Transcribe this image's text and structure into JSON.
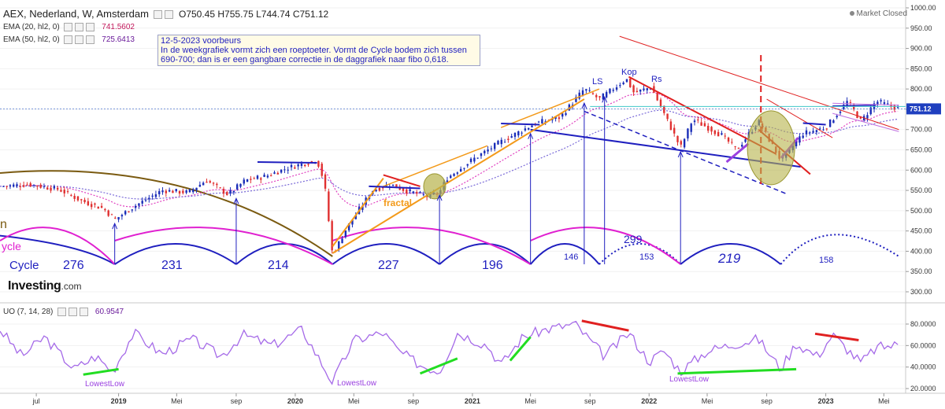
{
  "header": {
    "symbol": "AEX, Nederland, W, Amsterdam",
    "open": "O750.45",
    "high": "H755.75",
    "low": "L744.74",
    "close": "C751.12"
  },
  "indicators": {
    "ema20": {
      "label": "EMA (20, hl2, 0)",
      "value": "741.5602"
    },
    "ema50": {
      "label": "EMA (50, hl2, 0)",
      "value": "725.6413"
    }
  },
  "annotation": {
    "line1": "12-5-2023 voorbeurs",
    "line2": "In de weekgrafiek vormt zich een roeptoeter. Vormt de Cycle bodem zich tussen",
    "line3": "690-700; dan is er een gangbare correctie in de daggrafiek naar fibo 0,618."
  },
  "market_status": "Market Closed",
  "logo": {
    "name": "Investing",
    "domain": ".com"
  },
  "uo": {
    "label": "UO (7, 14, 28)",
    "value": "60.9547"
  },
  "colors": {
    "up": "#1a2db8",
    "down": "#e03030",
    "ema20": "#e040c0",
    "ema50": "#7a6ad8",
    "cycle_blue": "#1f1fbf",
    "cycle_magenta": "#e020d0",
    "brown": "#7a5a10",
    "orange": "#f39a1a",
    "red": "#e02020",
    "purple": "#9a40e0",
    "uo_line": "#a56ae8",
    "green": "#22dd22",
    "teal": "#40c8c8",
    "olive": "#b6b24a"
  },
  "chart_data": {
    "type": "candlestick",
    "title": "AEX, Nederland, W, Amsterdam",
    "price_axis": {
      "ticks": [
        "1000.00",
        "950.00",
        "900.00",
        "850.00",
        "800.00",
        "750.00",
        "700.00",
        "650.00",
        "600.00",
        "550.00",
        "500.00",
        "450.00",
        "400.00",
        "350.00",
        "300.00"
      ],
      "range": [
        280,
        1005
      ],
      "last_price_label": "751.12"
    },
    "uo_axis": {
      "ticks": [
        "80.0000",
        "60.0000",
        "40.0000",
        "20.0000"
      ],
      "range": [
        18,
        88
      ]
    },
    "time_axis": [
      "jul",
      "2019",
      "Mei",
      "sep",
      "2020",
      "Mei",
      "sep",
      "2021",
      "Mei",
      "sep",
      "2022",
      "Mei",
      "sep",
      "2023",
      "Mei"
    ],
    "time_range": [
      "2018-05",
      "2023-06"
    ],
    "price_path": [
      [
        "2018-05-01",
        560
      ],
      [
        "2018-07-01",
        565
      ],
      [
        "2018-09-01",
        552
      ],
      [
        "2018-10-15",
        525
      ],
      [
        "2018-12-01",
        505
      ],
      [
        "2018-12-24",
        478
      ],
      [
        "2019-02-01",
        510
      ],
      [
        "2019-04-01",
        550
      ],
      [
        "2019-05-25",
        545
      ],
      [
        "2019-07-01",
        575
      ],
      [
        "2019-08-15",
        540
      ],
      [
        "2019-09-20",
        575
      ],
      [
        "2019-11-01",
        585
      ],
      [
        "2019-12-15",
        605
      ],
      [
        "2020-02-15",
        625
      ],
      [
        "2020-03-01",
        570
      ],
      [
        "2020-03-18",
        390
      ],
      [
        "2020-04-15",
        455
      ],
      [
        "2020-06-08",
        550
      ],
      [
        "2020-07-15",
        565
      ],
      [
        "2020-08-15",
        550
      ],
      [
        "2020-09-30",
        535
      ],
      [
        "2020-10-25",
        545
      ],
      [
        "2020-11-09",
        580
      ],
      [
        "2020-12-31",
        625
      ],
      [
        "2021-03-01",
        670
      ],
      [
        "2021-05-10",
        715
      ],
      [
        "2021-07-01",
        730
      ],
      [
        "2021-08-20",
        800
      ],
      [
        "2021-09-20",
        775
      ],
      [
        "2021-11-15",
        825
      ],
      [
        "2021-12-01",
        790
      ],
      [
        "2022-01-05",
        805
      ],
      [
        "2022-03-07",
        655
      ],
      [
        "2022-04-01",
        725
      ],
      [
        "2022-06-01",
        685
      ],
      [
        "2022-07-01",
        650
      ],
      [
        "2022-08-15",
        720
      ],
      [
        "2022-09-30",
        625
      ],
      [
        "2022-11-15",
        690
      ],
      [
        "2023-01-01",
        705
      ],
      [
        "2023-02-15",
        770
      ],
      [
        "2023-03-15",
        720
      ],
      [
        "2023-04-15",
        770
      ],
      [
        "2023-06-01",
        751
      ]
    ],
    "uo_path": [
      [
        "2018-05-01",
        75
      ],
      [
        "2018-06-15",
        50
      ],
      [
        "2018-08-01",
        68
      ],
      [
        "2018-10-01",
        38
      ],
      [
        "2018-11-15",
        50
      ],
      [
        "2018-12-20",
        36
      ],
      [
        "2019-02-01",
        72
      ],
      [
        "2019-04-01",
        52
      ],
      [
        "2019-06-01",
        66
      ],
      [
        "2019-08-01",
        50
      ],
      [
        "2019-09-15",
        70
      ],
      [
        "2019-11-15",
        60
      ],
      [
        "2020-01-15",
        75
      ],
      [
        "2020-03-18",
        26
      ],
      [
        "2020-05-01",
        65
      ],
      [
        "2020-07-01",
        72
      ],
      [
        "2020-08-01",
        55
      ],
      [
        "2020-09-15",
        42
      ],
      [
        "2020-10-25",
        36
      ],
      [
        "2020-12-01",
        72
      ],
      [
        "2021-02-01",
        60
      ],
      [
        "2021-03-01",
        42
      ],
      [
        "2021-04-15",
        68
      ],
      [
        "2021-06-01",
        75
      ],
      [
        "2021-08-01",
        80
      ],
      [
        "2021-10-01",
        50
      ],
      [
        "2021-11-20",
        72
      ],
      [
        "2022-01-01",
        45
      ],
      [
        "2022-02-01",
        55
      ],
      [
        "2022-03-07",
        36
      ],
      [
        "2022-05-01",
        55
      ],
      [
        "2022-07-01",
        62
      ],
      [
        "2022-08-15",
        66
      ],
      [
        "2022-09-30",
        38
      ],
      [
        "2022-11-01",
        62
      ],
      [
        "2022-12-15",
        50
      ],
      [
        "2023-01-15",
        70
      ],
      [
        "2023-03-15",
        44
      ],
      [
        "2023-04-15",
        58
      ],
      [
        "2023-06-01",
        61
      ]
    ],
    "cycle_labels": [
      "Cycle",
      "276",
      "231",
      "214",
      "227",
      "196",
      "146",
      "299",
      "153",
      "219",
      "158"
    ],
    "pattern_labels": [
      "LS",
      "Kop",
      "Rs",
      "fractal",
      "ycle",
      "n"
    ],
    "uo_labels": [
      "LowestLow",
      "LowestLow",
      "LowestLow"
    ]
  }
}
